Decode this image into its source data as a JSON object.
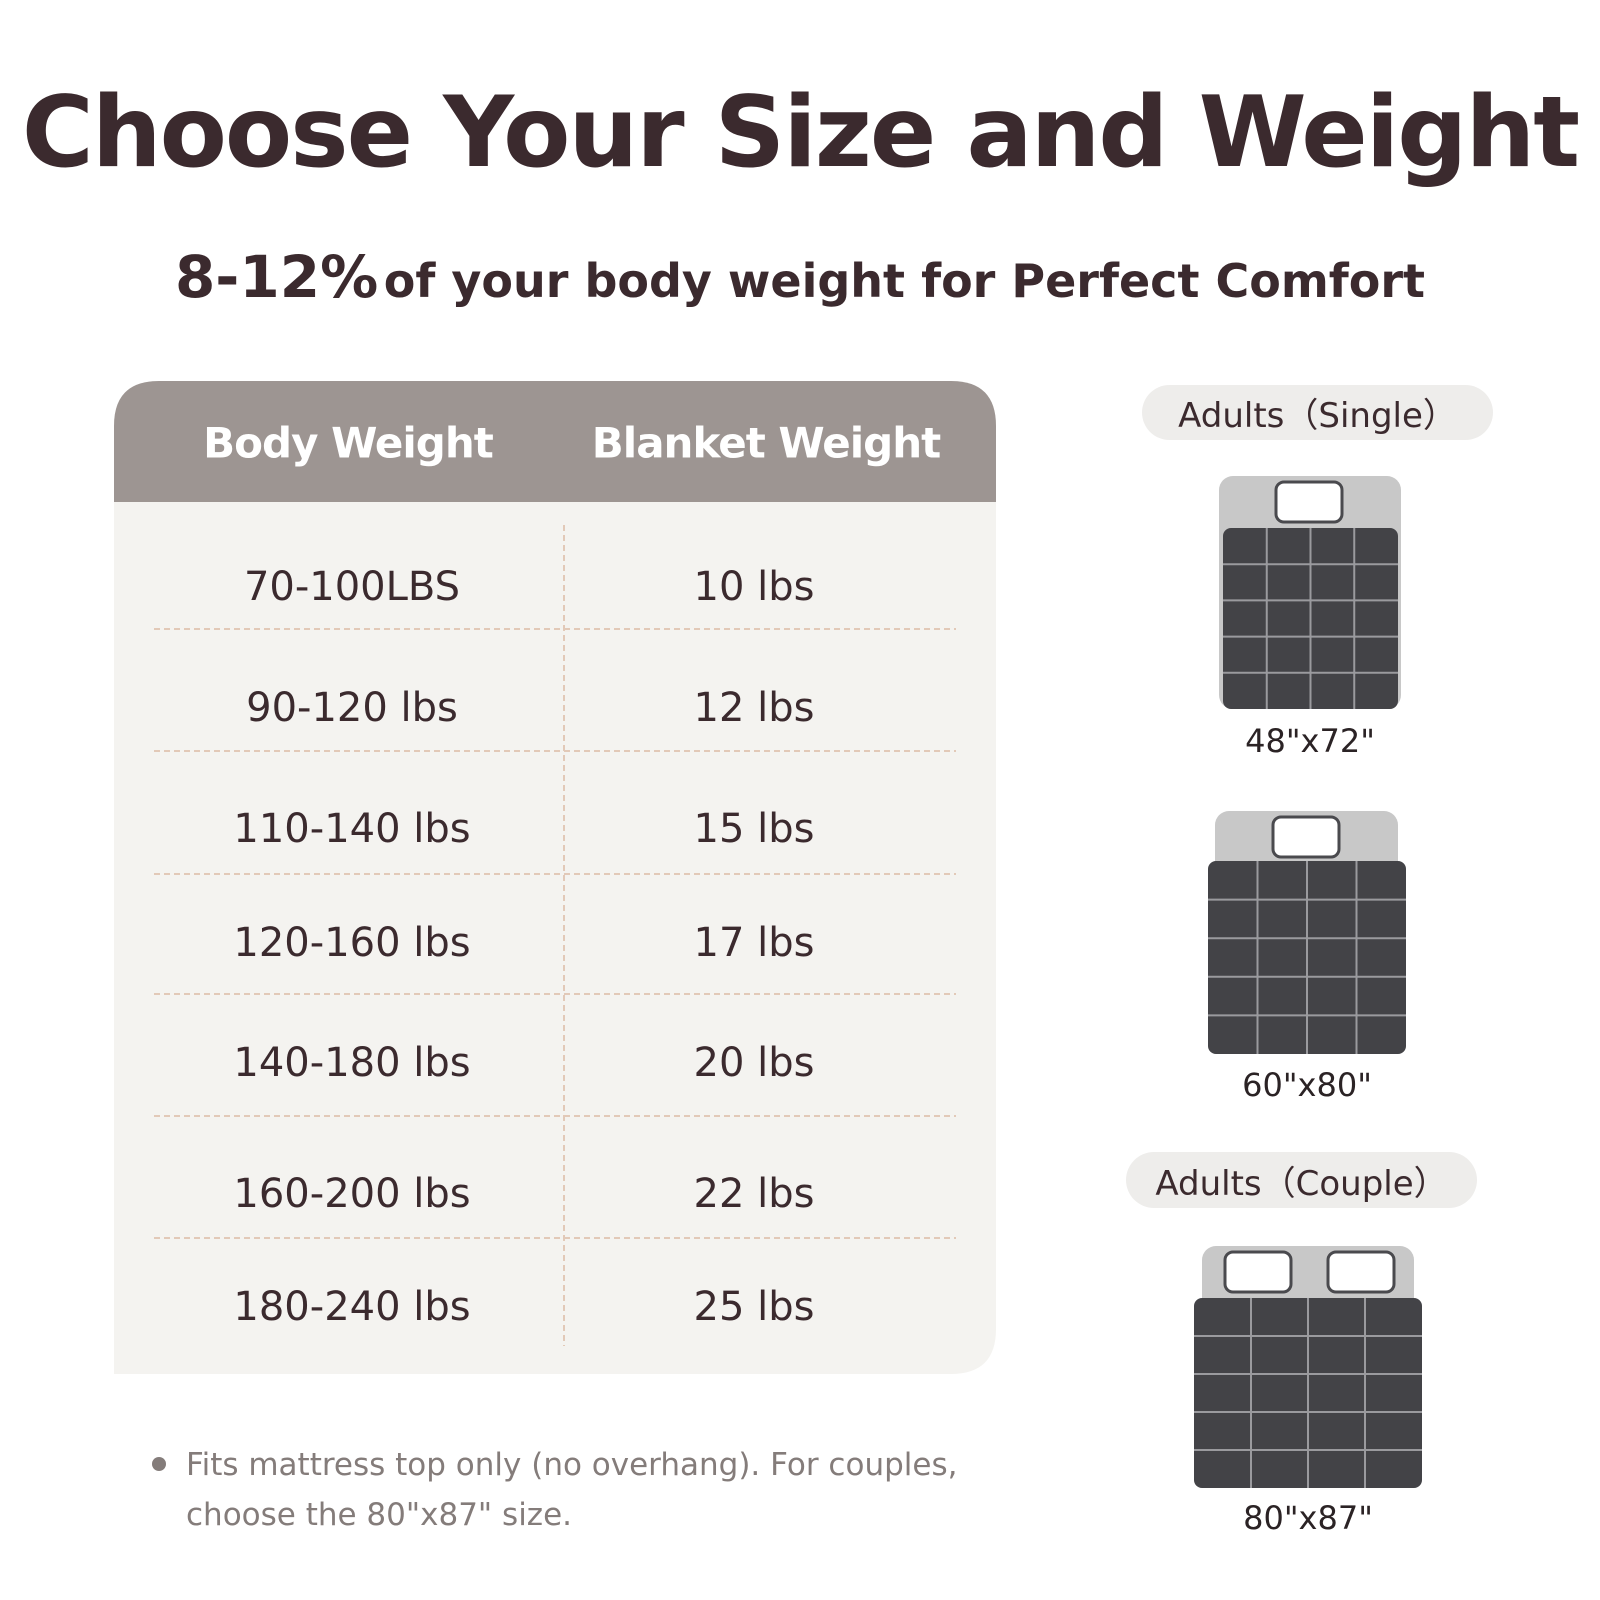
{
  "header": {
    "title": "Choose Your Size and Weight",
    "subtitle_highlight": "8-12%",
    "subtitle_rest": "of your body weight for Perfect Comfort"
  },
  "table": {
    "columns": [
      "Body Weight",
      "Blanket Weight"
    ],
    "rows": [
      [
        "70-100LBS",
        "10 lbs"
      ],
      [
        "90-120 lbs",
        "12 lbs"
      ],
      [
        "110-140 lbs",
        "15 lbs"
      ],
      [
        "120-160 lbs",
        "17 lbs"
      ],
      [
        "140-180 lbs",
        "20 lbs"
      ],
      [
        "160-200 lbs",
        "22 lbs"
      ],
      [
        "180-240 lbs",
        "25 lbs"
      ]
    ]
  },
  "sizes": {
    "groups": [
      {
        "label": "Adults（Single）",
        "beds": [
          "48\"x72\"",
          "60\"x80\""
        ]
      },
      {
        "label": "Adults（Couple）",
        "beds": [
          "80\"x87\""
        ]
      }
    ]
  },
  "note": "Fits mattress top only (no overhang). For couples, choose the 80\"x87\" size."
}
